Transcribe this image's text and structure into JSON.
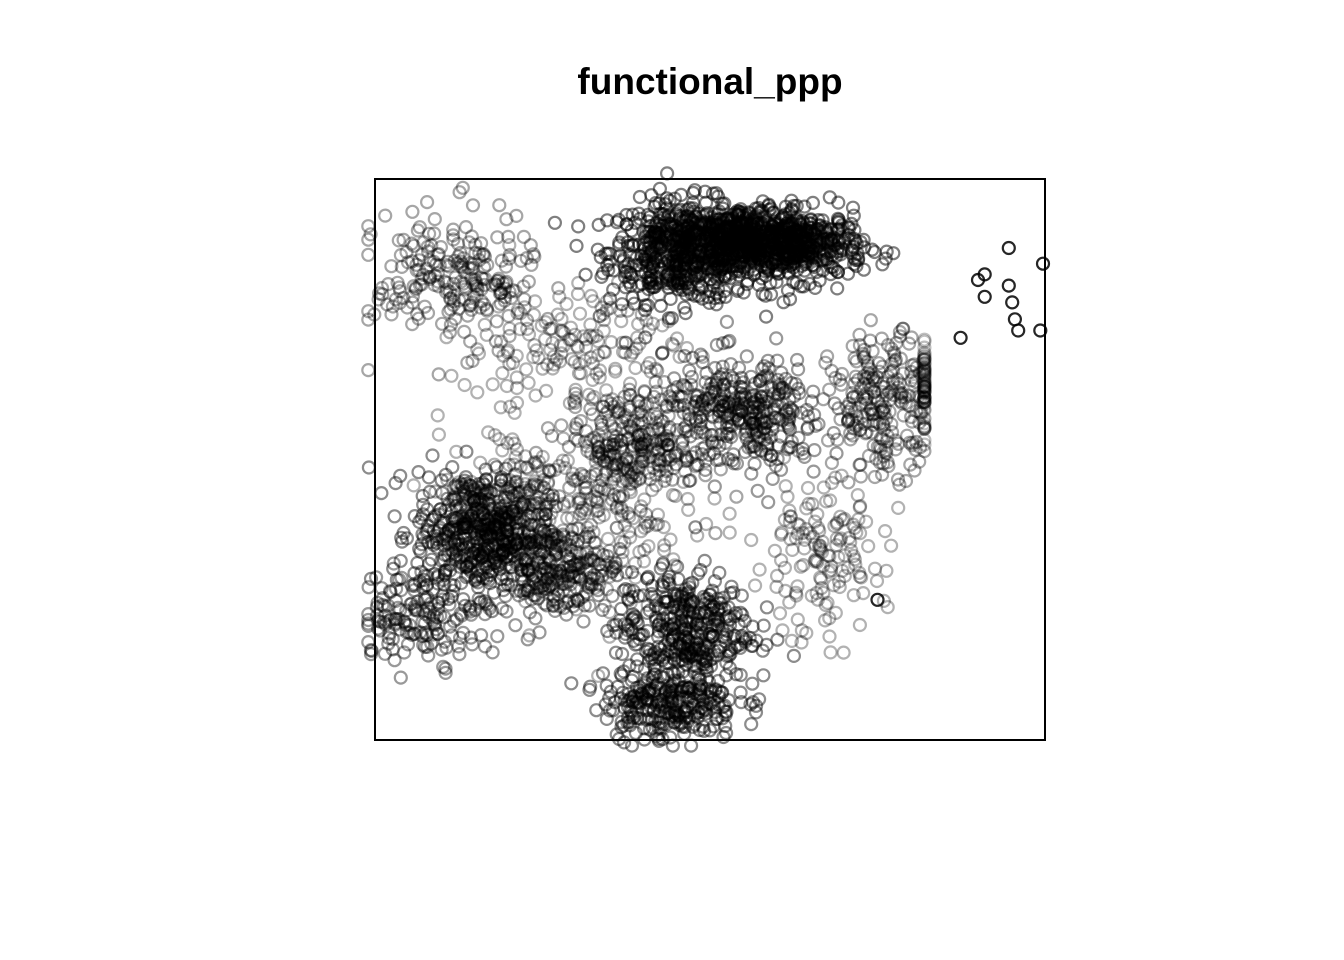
{
  "chart_data": {
    "type": "scatter",
    "title": "functional_ppp",
    "xlabel": "",
    "ylabel": "",
    "marker": "open-circle",
    "marker_color": "#000000",
    "axes_shown": false,
    "window_frame": true,
    "grid": false,
    "legend": "none",
    "xlim": [
      0,
      1
    ],
    "ylim": [
      0,
      1
    ],
    "clusters": [
      {
        "cx": 0.46,
        "cy": 0.87,
        "sx": 0.055,
        "sy": 0.045,
        "n": 550,
        "alpha": 0.5
      },
      {
        "cx": 0.55,
        "cy": 0.89,
        "sx": 0.045,
        "sy": 0.03,
        "n": 450,
        "alpha": 0.5
      },
      {
        "cx": 0.64,
        "cy": 0.88,
        "sx": 0.045,
        "sy": 0.03,
        "n": 350,
        "alpha": 0.5
      },
      {
        "cx": 0.16,
        "cy": 0.37,
        "sx": 0.05,
        "sy": 0.055,
        "n": 500,
        "alpha": 0.45
      },
      {
        "cx": 0.27,
        "cy": 0.3,
        "sx": 0.04,
        "sy": 0.04,
        "n": 200,
        "alpha": 0.4
      },
      {
        "cx": 0.46,
        "cy": 0.2,
        "sx": 0.05,
        "sy": 0.05,
        "n": 350,
        "alpha": 0.45
      },
      {
        "cx": 0.44,
        "cy": 0.07,
        "sx": 0.05,
        "sy": 0.035,
        "n": 280,
        "alpha": 0.45
      },
      {
        "cx": 0.55,
        "cy": 0.58,
        "sx": 0.06,
        "sy": 0.05,
        "n": 350,
        "alpha": 0.4
      },
      {
        "cx": 0.38,
        "cy": 0.52,
        "sx": 0.05,
        "sy": 0.05,
        "n": 250,
        "alpha": 0.35
      },
      {
        "cx": 0.12,
        "cy": 0.82,
        "sx": 0.06,
        "sy": 0.06,
        "n": 220,
        "alpha": 0.35
      },
      {
        "cx": 0.76,
        "cy": 0.6,
        "sx": 0.04,
        "sy": 0.06,
        "n": 220,
        "alpha": 0.35
      },
      {
        "cx": 0.07,
        "cy": 0.22,
        "sx": 0.05,
        "sy": 0.04,
        "n": 150,
        "alpha": 0.4
      },
      {
        "cx": 0.3,
        "cy": 0.7,
        "sx": 0.08,
        "sy": 0.06,
        "n": 160,
        "alpha": 0.3
      },
      {
        "cx": 0.66,
        "cy": 0.32,
        "sx": 0.05,
        "sy": 0.07,
        "n": 140,
        "alpha": 0.3
      },
      {
        "cx": 0.86,
        "cy": 0.63,
        "sx": 0.04,
        "sy": 0.04,
        "n": 60,
        "alpha": 0.25
      },
      {
        "cx": 0.36,
        "cy": 0.38,
        "sx": 0.08,
        "sy": 0.08,
        "n": 160,
        "alpha": 0.3
      },
      {
        "cx": 0.22,
        "cy": 0.45,
        "sx": 0.06,
        "sy": 0.06,
        "n": 120,
        "alpha": 0.3
      }
    ],
    "outliers": [
      {
        "x": 0.946,
        "y": 0.877
      },
      {
        "x": 0.997,
        "y": 0.849
      },
      {
        "x": 0.946,
        "y": 0.81
      },
      {
        "x": 0.951,
        "y": 0.78
      },
      {
        "x": 0.955,
        "y": 0.75
      },
      {
        "x": 0.96,
        "y": 0.73
      },
      {
        "x": 0.993,
        "y": 0.73
      },
      {
        "x": 0.874,
        "y": 0.717
      },
      {
        "x": 0.91,
        "y": 0.79
      },
      {
        "x": 0.9,
        "y": 0.82
      },
      {
        "x": 0.75,
        "y": 0.25
      },
      {
        "x": 0.91,
        "y": 0.83
      }
    ]
  }
}
